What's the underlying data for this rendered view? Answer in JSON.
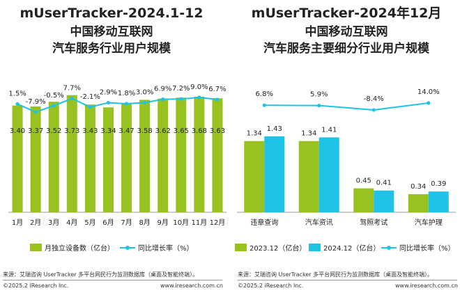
{
  "colors": {
    "green": "#98c21f",
    "blue": "#1ec3e6",
    "line": "#1ec3e6",
    "text": "#222222",
    "axis": "#9a9a9a"
  },
  "chart_data": [
    {
      "type": "bar",
      "title_lines": [
        "mUserTracker-2024.1-12",
        "中国移动互联网",
        "汽车服务行业用户规模"
      ],
      "categories": [
        "1月",
        "2月",
        "3月",
        "4月",
        "5月",
        "6月",
        "7月",
        "8月",
        "9月",
        "10月",
        "11月",
        "12月"
      ],
      "series": [
        {
          "name": "月独立设备数（亿台）",
          "type": "bar",
          "values": [
            3.4,
            3.37,
            3.52,
            3.73,
            3.43,
            3.34,
            3.47,
            3.58,
            3.62,
            3.65,
            3.68,
            3.63
          ],
          "labels": [
            "3.40",
            "3.37",
            "3.52",
            "3.73",
            "3.43",
            "3.34",
            "3.47",
            "3.58",
            "3.62",
            "3.65",
            "3.68",
            "3.63"
          ]
        },
        {
          "name": "同比增长率（%）",
          "type": "line",
          "values": [
            1.5,
            -7.9,
            -0.5,
            7.7,
            -2.1,
            2.9,
            1.8,
            3.0,
            6.9,
            7.2,
            9.0,
            6.7
          ],
          "labels": [
            "1.5%",
            "-7.9%",
            "-0.5%",
            "7.7%",
            "-2.1%",
            "2.9%",
            "1.8%",
            "3.0%",
            "6.9%",
            "7.2%",
            "9.0%",
            "6.7%"
          ]
        }
      ],
      "legend": [
        "月独立设备数（亿台）",
        "同比增长率（%）"
      ],
      "legend_position": "bottom",
      "grid": false,
      "source": "来源：艾瑞咨询 UserTracker 多平台网民行为监测数据库（桌面及智能终端）。",
      "copyright": "©2025.2 iResearch Inc.",
      "website": "www.iresearch.com.cn"
    },
    {
      "type": "bar",
      "title_lines": [
        "mUserTracker-2024年12月",
        "中国移动互联网",
        "汽车服务主要细分行业用户规模"
      ],
      "categories": [
        "违章查询",
        "汽车资讯",
        "驾照考试",
        "汽车护理"
      ],
      "series": [
        {
          "name": "2023.12（亿台）",
          "type": "bar",
          "values": [
            1.34,
            1.34,
            0.45,
            0.34
          ],
          "labels": [
            "1.34",
            "1.34",
            "0.45",
            "0.34"
          ]
        },
        {
          "name": "2024.12（亿台）",
          "type": "bar",
          "values": [
            1.43,
            1.41,
            0.41,
            0.39
          ],
          "labels": [
            "1.43",
            "1.41",
            "0.41",
            "0.39"
          ]
        },
        {
          "name": "同比增长率（%）",
          "type": "line",
          "values": [
            6.8,
            5.9,
            -8.4,
            14.0
          ],
          "labels": [
            "6.8%",
            "5.9%",
            "-8.4%",
            "14.0%"
          ]
        }
      ],
      "legend": [
        "2023.12（亿台）",
        "2024.12（亿台）",
        "同比增长率（%）"
      ],
      "legend_position": "bottom",
      "grid": false,
      "source": "来源：艾瑞咨询 UserTracker 多平台网民行为监测数据库（桌面及智能终端）。",
      "copyright": "©2025.2 iResearch Inc.",
      "website": "www.iresearch.com.cn"
    }
  ]
}
